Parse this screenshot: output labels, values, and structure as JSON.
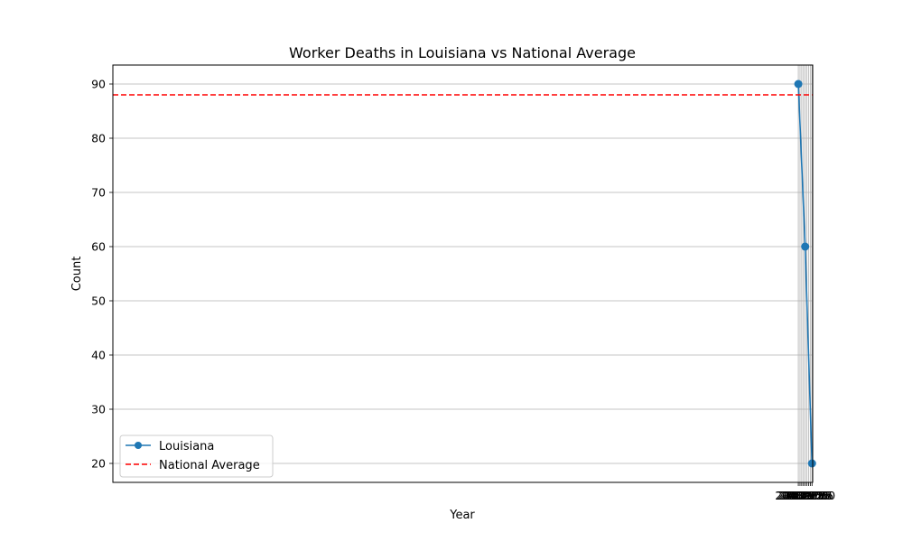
{
  "chart_data": {
    "type": "line",
    "title": "Worker Deaths in Louisiana vs National Average",
    "xlabel": "Year",
    "ylabel": "Count",
    "xlim": [
      1917.9,
      2020.1
    ],
    "ylim": [
      16.5,
      93.5
    ],
    "x_ticks": [
      2018.0,
      2018.25,
      2018.5,
      2018.75,
      2019.0,
      2019.25,
      2019.5,
      2019.75,
      2020.0
    ],
    "x_tick_labels": [
      "2018.00",
      "2018.25",
      "2018.50",
      "2018.75",
      "2019.00",
      "2019.25",
      "2019.50",
      "2019.75",
      "2020.00"
    ],
    "y_ticks": [
      20,
      30,
      40,
      50,
      60,
      70,
      80,
      90
    ],
    "y_tick_labels": [
      "20",
      "30",
      "40",
      "50",
      "60",
      "70",
      "80",
      "90"
    ],
    "grid": true,
    "legend_position": "lower-left",
    "series": [
      {
        "name": "Louisiana",
        "kind": "line-with-markers",
        "color": "#1f77b4",
        "x": [
          2018,
          2019,
          2020
        ],
        "y": [
          90,
          60,
          20
        ]
      },
      {
        "name": "National Average",
        "kind": "horizontal-reference-line",
        "color": "#ff0000",
        "style": "dashed",
        "y": 88
      }
    ]
  }
}
